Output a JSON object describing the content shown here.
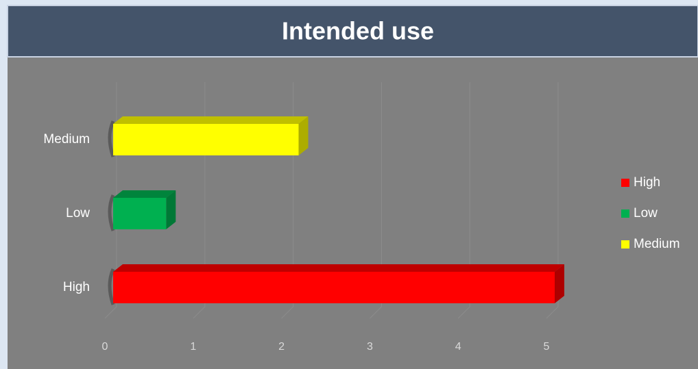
{
  "chart_data": {
    "type": "bar3d",
    "title": "Intended use",
    "categories": [
      "High",
      "Low",
      "Medium"
    ],
    "values": [
      5,
      0.6,
      2.1
    ],
    "colors": [
      "#ff0000",
      "#00b050",
      "#ffff00"
    ],
    "xlim": [
      0,
      5
    ],
    "xticks": [
      0,
      1,
      2,
      3,
      4,
      5
    ],
    "grid": true,
    "legend": "right"
  }
}
